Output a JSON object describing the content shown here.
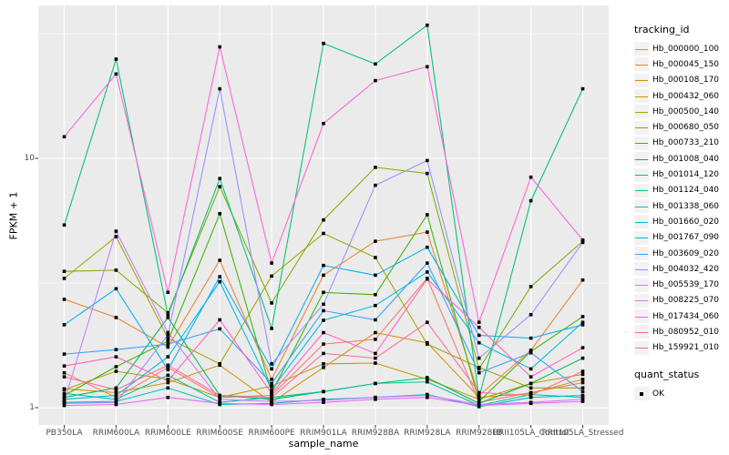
{
  "chart_data": {
    "type": "line",
    "title": "",
    "xlabel": "sample_name",
    "ylabel": "FPKM + 1",
    "y_scale": "log10",
    "ytick_labels": {
      "bottom": "1",
      "top": "10"
    },
    "yticks": [
      1,
      10
    ],
    "grid": "on",
    "legend_position": "right",
    "point_marker": "black-square",
    "categories": [
      "PB350LA",
      "RRIM600LA",
      "RRIM600LE",
      "RRIM600SE",
      "RRIM600PE",
      "RRIM901LA",
      "RRIM928BA",
      "RRIM928LA",
      "RRIM928LB",
      "RRII105LA_Control",
      "RRII105LA_Stressed"
    ],
    "series": [
      {
        "name": "Hb_000000_100",
        "color": "#F8766D",
        "values": [
          1.38,
          1.1,
          1.45,
          1.1,
          1.12,
          1.8,
          1.88,
          3.3,
          1.05,
          1.15,
          1.26
        ]
      },
      {
        "name": "Hb_000045_150",
        "color": "#EA8331",
        "values": [
          2.72,
          2.3,
          1.75,
          3.9,
          1.3,
          3.4,
          4.65,
          5.06,
          1.12,
          1.7,
          3.25
        ]
      },
      {
        "name": "Hb_000108_170",
        "color": "#D89000",
        "values": [
          1.19,
          1.15,
          1.26,
          1.48,
          1.05,
          1.45,
          2.0,
          1.82,
          1.1,
          1.14,
          1.3
        ]
      },
      {
        "name": "Hb_000432_060",
        "color": "#C09B00",
        "values": [
          1.18,
          1.4,
          1.3,
          1.1,
          1.22,
          1.5,
          1.51,
          1.3,
          1.08,
          1.25,
          1.36
        ]
      },
      {
        "name": "Hb_000500_140",
        "color": "#A3A500",
        "values": [
          3.3,
          4.85,
          1.9,
          1.5,
          3.37,
          5.0,
          4.0,
          1.8,
          1.45,
          1.2,
          1.2
        ]
      },
      {
        "name": "Hb_000680_050",
        "color": "#7CAE00",
        "values": [
          3.52,
          3.56,
          2.4,
          7.7,
          2.63,
          5.66,
          9.2,
          8.7,
          1.43,
          3.06,
          4.65
        ]
      },
      {
        "name": "Hb_000733_210",
        "color": "#39B600",
        "values": [
          1.12,
          1.46,
          1.85,
          6.0,
          1.15,
          2.9,
          2.84,
          5.94,
          1.06,
          1.68,
          2.32
        ]
      },
      {
        "name": "Hb_001008_040",
        "color": "#00BB4E",
        "values": [
          1.1,
          1.2,
          2.3,
          1.12,
          1.08,
          1.16,
          1.25,
          1.32,
          1.04,
          1.25,
          1.58
        ]
      },
      {
        "name": "Hb_001014_120",
        "color": "#00BF7D",
        "values": [
          5.4,
          25.0,
          2.35,
          8.3,
          2.08,
          28.9,
          23.9,
          34.2,
          1.1,
          6.76,
          19.0
        ]
      },
      {
        "name": "Hb_001124_040",
        "color": "#00C1A3",
        "values": [
          1.14,
          1.08,
          1.35,
          1.05,
          1.1,
          1.16,
          1.25,
          1.27,
          1.02,
          1.13,
          1.1
        ]
      },
      {
        "name": "Hb_001338_060",
        "color": "#00BFC4",
        "values": [
          1.05,
          1.06,
          1.2,
          1.03,
          1.04,
          1.08,
          1.1,
          1.13,
          1.01,
          1.1,
          1.12
        ]
      },
      {
        "name": "Hb_001660_020",
        "color": "#00BADE",
        "values": [
          1.08,
          1.12,
          1.6,
          3.2,
          1.18,
          2.24,
          2.57,
          3.5,
          1.82,
          1.43,
          2.2
        ]
      },
      {
        "name": "Hb_001767_090",
        "color": "#00B0F6",
        "values": [
          2.15,
          3.0,
          1.42,
          3.35,
          1.43,
          3.72,
          3.4,
          4.4,
          1.95,
          1.9,
          2.15
        ]
      },
      {
        "name": "Hb_003609_020",
        "color": "#35A2FF",
        "values": [
          1.64,
          1.71,
          1.8,
          2.07,
          1.25,
          2.45,
          2.25,
          3.8,
          1.38,
          1.66,
          1.16
        ]
      },
      {
        "name": "Hb_004032_420",
        "color": "#9590FF",
        "values": [
          1.04,
          1.05,
          1.96,
          19.0,
          1.5,
          2.6,
          7.8,
          9.8,
          1.58,
          2.36,
          4.6
        ]
      },
      {
        "name": "Hb_005539_170",
        "color": "#C77CFF",
        "values": [
          1.06,
          5.1,
          2.0,
          1.08,
          1.06,
          1.07,
          1.1,
          1.12,
          1.03,
          1.05,
          1.08
        ]
      },
      {
        "name": "Hb_008225_070",
        "color": "#E76BF3",
        "values": [
          1.02,
          1.03,
          1.1,
          1.04,
          1.03,
          1.05,
          1.08,
          1.1,
          1.02,
          1.04,
          1.06
        ]
      },
      {
        "name": "Hb_017434_060",
        "color": "#FA62DB",
        "values": [
          12.2,
          21.8,
          2.9,
          28.0,
          3.8,
          13.8,
          20.5,
          23.3,
          2.2,
          8.4,
          4.7
        ]
      },
      {
        "name": "Hb_080952_010",
        "color": "#FF62BC",
        "values": [
          1.47,
          1.6,
          1.28,
          2.25,
          1.14,
          2.0,
          1.65,
          3.28,
          2.1,
          1.33,
          1.74
        ]
      },
      {
        "name": "Hb_159921_010",
        "color": "#FF6A98",
        "values": [
          1.33,
          1.18,
          1.48,
          1.12,
          1.1,
          1.65,
          1.58,
          2.2,
          1.15,
          1.12,
          1.4
        ]
      }
    ]
  },
  "legend": {
    "tracking_title": "tracking_id",
    "quant_title": "quant_status",
    "quant_items": [
      {
        "label": "OK"
      }
    ]
  },
  "panel": {
    "background": "#EBEBEB",
    "gridline_color": "#FFFFFF",
    "point_color": "#000000",
    "tick_text_color": "#4D4D4D"
  }
}
